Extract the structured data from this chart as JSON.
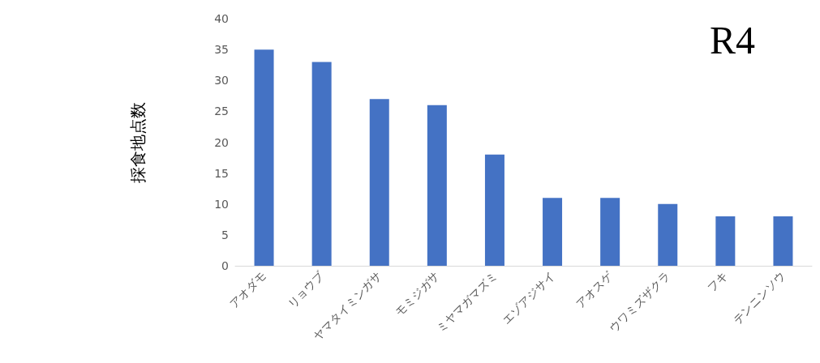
{
  "chart_data": {
    "type": "bar",
    "title": "R4",
    "ylabel": "採食地点数",
    "categories": [
      "アオダモ",
      "リョウブ",
      "ヤマタイミンガサ",
      "モミジガサ",
      "ミヤマガマズミ",
      "エゾアジサイ",
      "アオスゲ",
      "ウワミズザクラ",
      "フキ",
      "テンニンソウ"
    ],
    "values": [
      35,
      33,
      27,
      26,
      18,
      11,
      11,
      10,
      8,
      8
    ],
    "color": "#4472c4",
    "ylim": [
      0,
      40
    ],
    "yticks": [
      0,
      5,
      10,
      15,
      20,
      25,
      30,
      35,
      40
    ],
    "grid": false
  }
}
